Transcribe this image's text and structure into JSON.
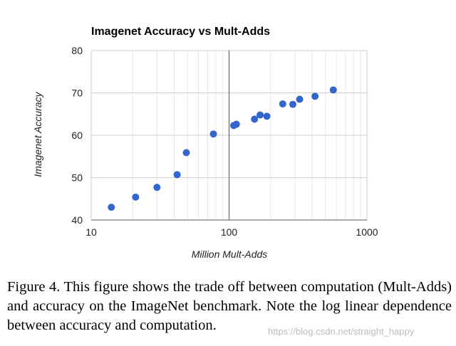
{
  "chart_data": {
    "type": "scatter",
    "title": "Imagenet Accuracy vs Mult-Adds",
    "xlabel": "Million Mult-Adds",
    "ylabel": "Imagenet Accuracy",
    "xscale": "log",
    "xlim": [
      10,
      1000
    ],
    "ylim": [
      40,
      80
    ],
    "xticks": [
      10,
      100,
      1000
    ],
    "yticks": [
      40,
      50,
      60,
      70,
      80
    ],
    "grid": true,
    "marker_color": "#3366cc",
    "points": [
      {
        "x": 14,
        "y": 43.0
      },
      {
        "x": 21,
        "y": 45.4
      },
      {
        "x": 30,
        "y": 47.7
      },
      {
        "x": 42,
        "y": 50.7
      },
      {
        "x": 49,
        "y": 55.9
      },
      {
        "x": 77,
        "y": 60.3
      },
      {
        "x": 108,
        "y": 62.3
      },
      {
        "x": 113,
        "y": 62.6
      },
      {
        "x": 153,
        "y": 63.8
      },
      {
        "x": 168,
        "y": 64.8
      },
      {
        "x": 188,
        "y": 64.5
      },
      {
        "x": 245,
        "y": 67.4
      },
      {
        "x": 290,
        "y": 67.3
      },
      {
        "x": 325,
        "y": 68.5
      },
      {
        "x": 420,
        "y": 69.2
      },
      {
        "x": 570,
        "y": 70.7
      }
    ]
  },
  "caption": "Figure 4. This figure shows the trade off between computation (Mult-Adds) and accuracy on the ImageNet benchmark. Note the log linear dependence between accuracy and computation.",
  "watermark": "https://blog.csdn.net/straight_happy"
}
